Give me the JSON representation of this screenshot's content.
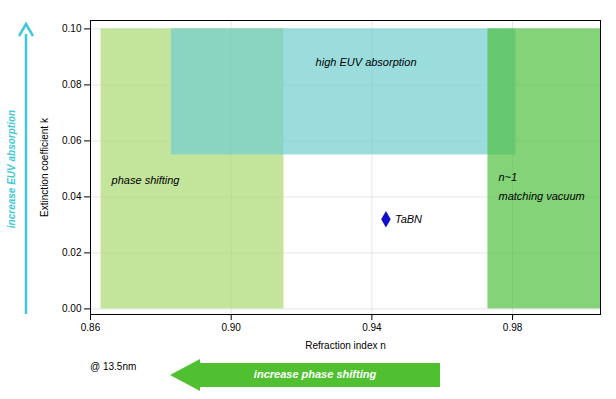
{
  "chart_data": {
    "type": "scatter",
    "xlabel": "Refraction index n",
    "ylabel": "Extinction coefficient k",
    "xlim": [
      0.86,
      1.005
    ],
    "ylim": [
      -0.002,
      0.103
    ],
    "xticks": [
      0.86,
      {
        "value": 0.9,
        "label": "0.90"
      },
      0.94,
      0.98
    ],
    "yticks": [
      {
        "value": 0,
        "label": "0.00"
      },
      0.02,
      0.04,
      0.06,
      0.08,
      {
        "value": 0.1,
        "label": "0.10"
      }
    ],
    "grid": true,
    "regions": [
      {
        "x": 0.863,
        "y": 0.0,
        "width": 0.052,
        "height": 0.1,
        "color": "#a8d870"
      },
      {
        "x": 0.883,
        "y": 0.055,
        "width": 0.098,
        "height": 0.045,
        "color": "#70cece"
      },
      {
        "x": 0.973,
        "y": 0.0,
        "width": 0.032,
        "height": 0.1,
        "color": "#50c040"
      }
    ],
    "annotations": [
      {
        "text": "phase shifting",
        "x": 0.866,
        "y": 0.046
      },
      {
        "text": "high EUV absorption",
        "x": 0.924,
        "y": 0.088
      },
      {
        "text": "n~1",
        "x": 0.976,
        "y": 0.047
      },
      {
        "text": "matching vacuum",
        "x": 0.976,
        "y": 0.04
      }
    ],
    "series": [
      {
        "name": "TaBN",
        "color": "#1010cc",
        "marker": "diamond",
        "x": [
          0.944
        ],
        "y": [
          0.032
        ]
      }
    ],
    "y_arrow": {
      "text": "increase EUV absorption",
      "color": "#40c8d8"
    },
    "x_arrow": {
      "text": "increase phase shifting",
      "color": "#50c030"
    },
    "x_arrow_note": "@ 13.5nm"
  }
}
